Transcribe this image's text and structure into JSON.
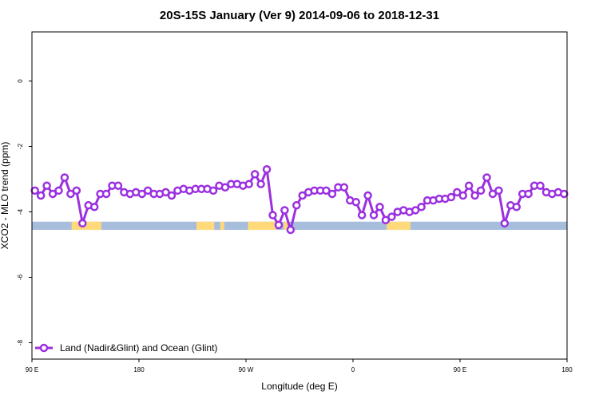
{
  "chart_data": {
    "type": "line",
    "title": "20S-15S January (Ver 9)   2014-09-06 to 2018-12-31",
    "xlabel": "Longitude (deg E)",
    "ylabel": "XCO2 - MLO trend (ppm)",
    "xlim": [
      -90,
      180
    ],
    "ylim": [
      -8.5,
      1.5
    ],
    "x_ticks": [
      -90,
      -36,
      18,
      72,
      126,
      180
    ],
    "x_tick_labels": [
      "90 E",
      "180",
      "90 W",
      "0",
      "90 E",
      "180"
    ],
    "y_ticks": [
      0,
      -2,
      -4,
      -6,
      -8
    ],
    "y_tick_labels": [
      "0",
      "-2",
      "-4",
      "-6",
      "-8"
    ],
    "grid": false,
    "legend_position": "bottom-left",
    "colors": {
      "series": "#9b30e0",
      "land": "#ffd97a",
      "ocean": "#a6bddb"
    },
    "series": [
      {
        "name": "Land (Nadir&Glint) and Ocean (Glint)",
        "x": [
          -88.5,
          -85.5,
          -82.5,
          -79.5,
          -76.5,
          -73.5,
          -70.5,
          -67.5,
          -64.5,
          -61.5,
          -58.5,
          -55.5,
          -52.5,
          -49.5,
          -46.5,
          -43.5,
          -40.5,
          -37.5,
          -34.5,
          -31.5,
          -28.5,
          -25.5,
          -22.5,
          -19.5,
          -16.5,
          -13.5,
          -10.5,
          -7.5,
          -4.5,
          -1.5,
          1.5,
          4.5,
          7.5,
          10.5,
          13.5,
          16.5,
          19.5,
          22.5,
          25.5,
          28.5,
          31.5,
          34.5,
          37.5,
          40.5,
          43.5,
          46.5,
          49.5,
          52.5,
          55.5,
          58.5,
          61.5,
          64.5,
          67.5,
          70.5,
          73.5,
          76.5,
          79.5,
          82.5,
          85.5,
          88.5,
          91.5,
          94.5,
          97.5,
          100.5,
          103.5,
          106.5,
          109.5,
          112.5,
          115.5,
          118.5,
          121.5,
          124.5,
          127.5,
          130.5,
          133.5,
          136.5,
          139.5,
          142.5,
          145.5,
          148.5,
          151.5,
          154.5,
          157.5,
          160.5,
          163.5,
          166.5,
          169.5,
          172.5,
          175.5,
          178.5
        ],
        "values": [
          -3.35,
          -3.5,
          -3.2,
          -3.45,
          -3.35,
          -2.95,
          -3.45,
          -3.35,
          -4.35,
          -3.8,
          -3.85,
          -3.45,
          -3.45,
          -3.2,
          -3.2,
          -3.4,
          -3.45,
          -3.4,
          -3.45,
          -3.35,
          -3.45,
          -3.45,
          -3.4,
          -3.5,
          -3.35,
          -3.3,
          -3.35,
          -3.3,
          -3.3,
          -3.3,
          -3.35,
          -3.2,
          -3.25,
          -3.15,
          -3.15,
          -3.2,
          -3.15,
          -2.85,
          -3.15,
          -2.7,
          -4.1,
          -4.4,
          -3.95,
          -4.55,
          -3.8,
          -3.5,
          -3.4,
          -3.35,
          -3.35,
          -3.35,
          -3.45,
          -3.25,
          -3.25,
          -3.65,
          -3.7,
          -4.1,
          -3.5,
          -4.1,
          -3.85,
          -4.25,
          -4.15,
          -4.0,
          -3.95,
          -4.0,
          -3.95,
          -3.85,
          -3.65,
          -3.65,
          -3.6,
          -3.6,
          -3.55,
          -3.4,
          -3.5,
          -3.2,
          -3.5,
          -3.35,
          -2.95,
          -3.45,
          -3.35,
          -4.35,
          -3.8,
          -3.85,
          -3.45,
          -3.45,
          -3.2,
          -3.2,
          -3.4,
          -3.45,
          -3.4,
          -3.45
        ]
      }
    ],
    "surface_band": {
      "y_range": [
        -4.55,
        -4.3
      ],
      "land_segments": [
        [
          -70,
          -55
        ],
        [
          -7,
          2
        ],
        [
          5,
          7
        ],
        [
          19,
          33
        ],
        [
          37,
          39
        ],
        [
          89,
          101
        ]
      ]
    }
  }
}
